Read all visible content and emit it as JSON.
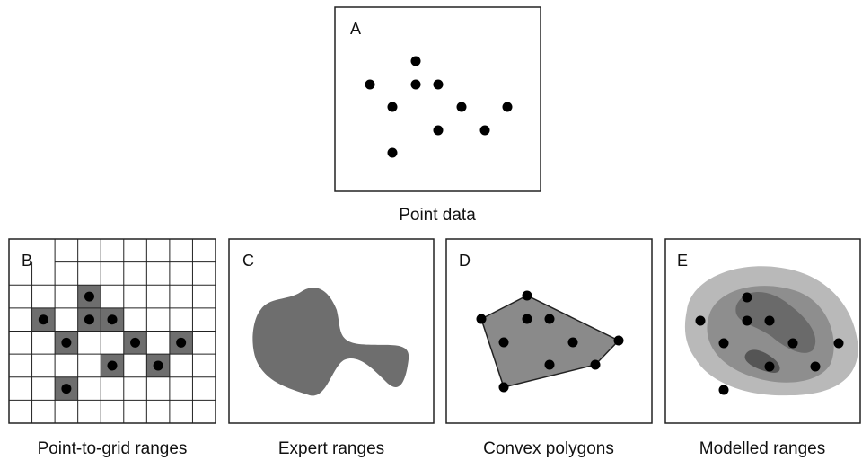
{
  "panels": [
    {
      "label": "A",
      "caption": "Point data"
    },
    {
      "label": "B",
      "caption": "Point-to-grid ranges"
    },
    {
      "label": "C",
      "caption": "Expert ranges"
    },
    {
      "label": "D",
      "caption": "Convex polygons"
    },
    {
      "label": "E",
      "caption": "Modelled ranges"
    }
  ]
}
